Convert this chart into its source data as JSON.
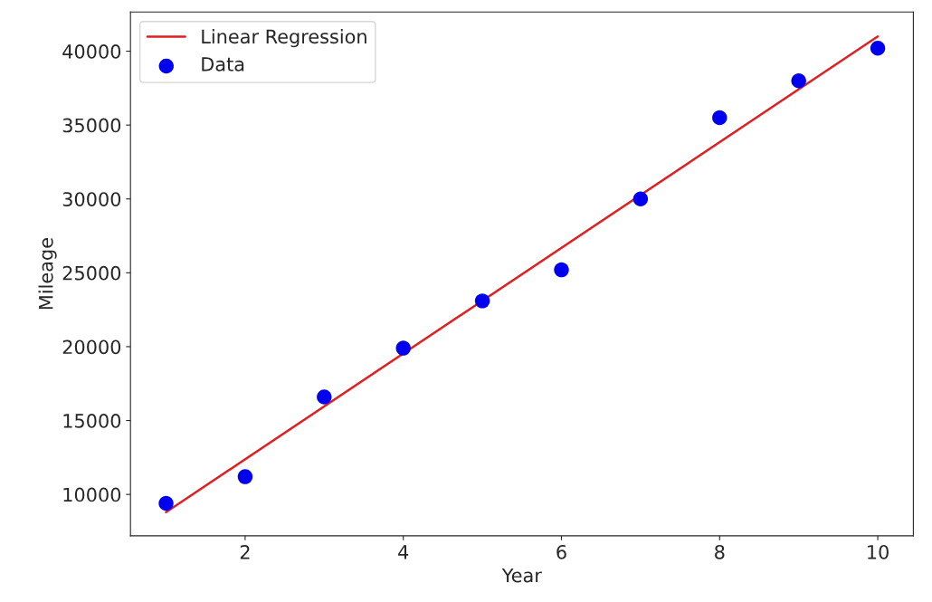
{
  "chart_data": {
    "type": "scatter",
    "xlabel": "Year",
    "ylabel": "Mileage",
    "x": [
      1,
      2,
      3,
      4,
      5,
      6,
      7,
      8,
      9,
      10
    ],
    "series": [
      {
        "name": "Linear Regression",
        "type": "line",
        "color": "#e02020",
        "x": [
          1,
          10
        ],
        "values": [
          8800,
          41000
        ],
        "marker": "none"
      },
      {
        "name": "Data",
        "color": "#0000ee",
        "values": [
          9400,
          11200,
          16600,
          19900,
          23100,
          25200,
          30000,
          35500,
          38000,
          40200
        ],
        "marker": "circle"
      }
    ],
    "xlim": [
      0.55,
      10.45
    ],
    "ylim": [
      7200,
      42650
    ],
    "xticks": [
      2,
      4,
      6,
      8,
      10
    ],
    "yticks": [
      10000,
      15000,
      20000,
      25000,
      30000,
      35000,
      40000
    ],
    "grid": false,
    "legend": "top left"
  }
}
